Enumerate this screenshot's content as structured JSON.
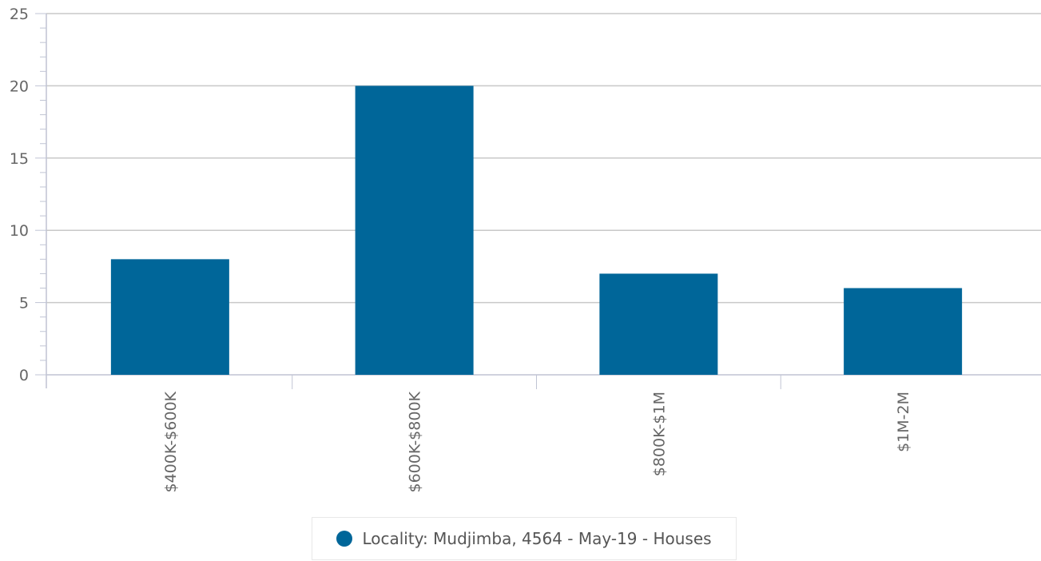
{
  "colors": {
    "bar": "#006699",
    "grid": "#c8c8c8",
    "axis": "#c0c4d4",
    "tick_text": "#666666"
  },
  "chart_data": {
    "type": "bar",
    "categories": [
      "$400K-$600K",
      "$600K-$800K",
      "$800K-$1M",
      "$1M-2M"
    ],
    "series": [
      {
        "name": "Locality: Mudjimba, 4564 - May-19 - Houses",
        "values": [
          8,
          20,
          7,
          6
        ]
      }
    ],
    "y_ticks": [
      "0",
      "5",
      "10",
      "15",
      "20",
      "25"
    ],
    "ylim": [
      0,
      25
    ],
    "grid": true,
    "legend_position": "bottom-center",
    "title": "",
    "xlabel": "",
    "ylabel": ""
  },
  "legend": {
    "label": "Locality: Mudjimba, 4564 - May-19 - Houses",
    "icon": "circle-marker-icon"
  }
}
